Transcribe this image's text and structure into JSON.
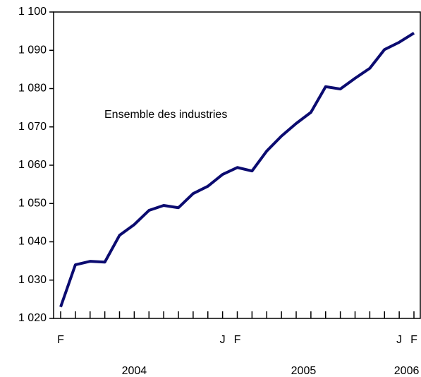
{
  "chart_data": {
    "type": "line",
    "annotation": "Ensemble des industries",
    "categories": [
      "F",
      null,
      null,
      null,
      null,
      null,
      null,
      null,
      null,
      null,
      null,
      "J",
      "F",
      null,
      null,
      null,
      null,
      null,
      null,
      null,
      null,
      null,
      null,
      "J",
      "F"
    ],
    "year_labels": [
      "2004",
      "2005",
      "2006"
    ],
    "series": [
      {
        "color": "#0b0b70",
        "values": [
          1023,
          1034,
          1034.9,
          1034.7,
          1041.7,
          1044.5,
          1048.2,
          1049.5,
          1048.9,
          1052.6,
          1054.5,
          1057.6,
          1059.4,
          1058.5,
          1063.7,
          1067.6,
          1070.9,
          1073.8,
          1080.5,
          1079.9,
          1082.7,
          1085.3,
          1090.2,
          1092.1,
          1094.5
        ]
      }
    ],
    "ylim": [
      1020,
      1100
    ],
    "yticks": [
      {
        "value": 1020,
        "label": "1 020"
      },
      {
        "value": 1030,
        "label": "1 030"
      },
      {
        "value": 1040,
        "label": "1 040"
      },
      {
        "value": 1050,
        "label": "1 050"
      },
      {
        "value": 1060,
        "label": "1 060"
      },
      {
        "value": 1070,
        "label": "1 070"
      },
      {
        "value": 1080,
        "label": "1 080"
      },
      {
        "value": 1090,
        "label": "1 090"
      },
      {
        "value": 1100,
        "label": "1 100"
      }
    ]
  }
}
